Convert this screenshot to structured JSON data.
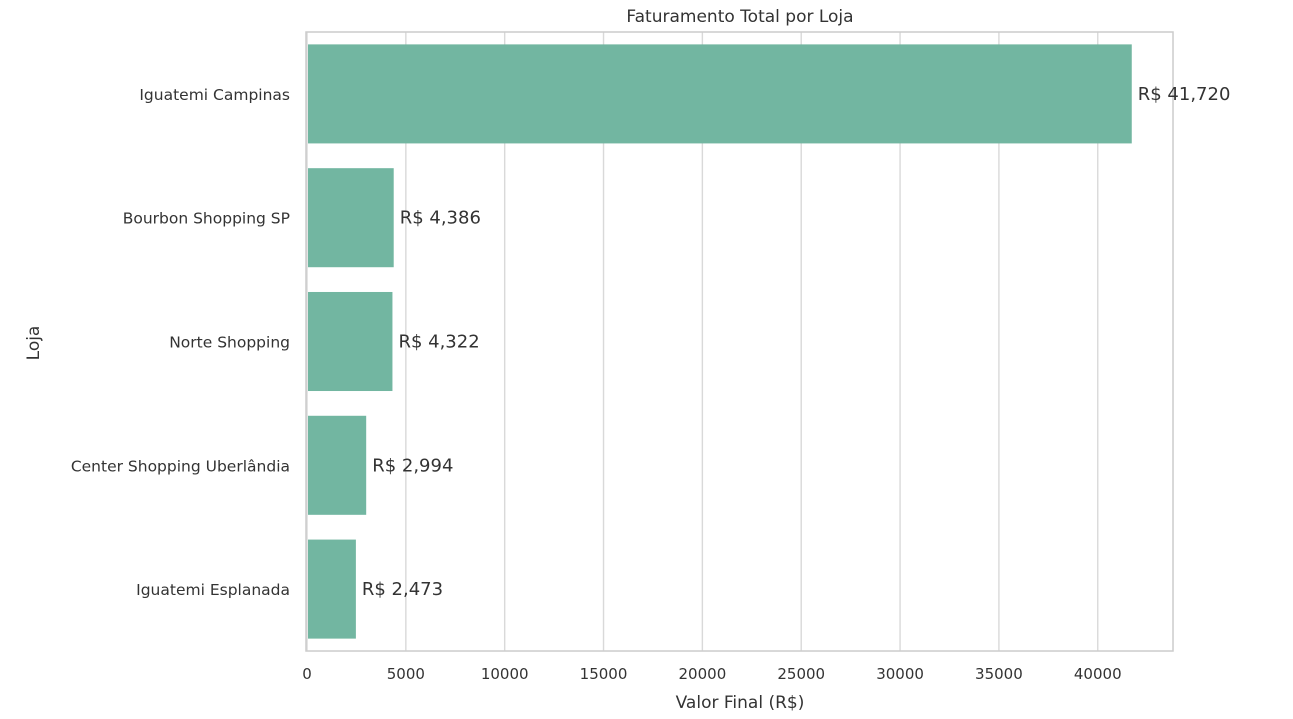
{
  "chart_data": {
    "type": "bar",
    "orientation": "horizontal",
    "title": "Faturamento Total por Loja",
    "xlabel": "Valor Final (R$)",
    "ylabel": "Loja",
    "categories": [
      "Iguatemi Campinas",
      "Bourbon Shopping SP",
      "Norte Shopping",
      "Center Shopping Uberlândia",
      "Iguatemi Esplanada"
    ],
    "values": [
      41720,
      4386,
      4322,
      2994,
      2473
    ],
    "data_labels": [
      "R$ 41,720",
      "R$ 4,386",
      "R$ 4,322",
      "R$ 2,994",
      "R$ 2,473"
    ],
    "xlim": [
      0,
      43806
    ],
    "xticks": [
      0,
      5000,
      10000,
      15000,
      20000,
      25000,
      30000,
      35000,
      40000
    ],
    "xtick_labels": [
      "0",
      "5000",
      "10000",
      "15000",
      "20000",
      "25000",
      "30000",
      "35000",
      "40000"
    ],
    "grid": "vertical",
    "legend": "none",
    "colors": {
      "bar": "#72b6a1",
      "grid": "#d9d9d9",
      "spine": "#cccccc",
      "text": "#333333"
    }
  }
}
